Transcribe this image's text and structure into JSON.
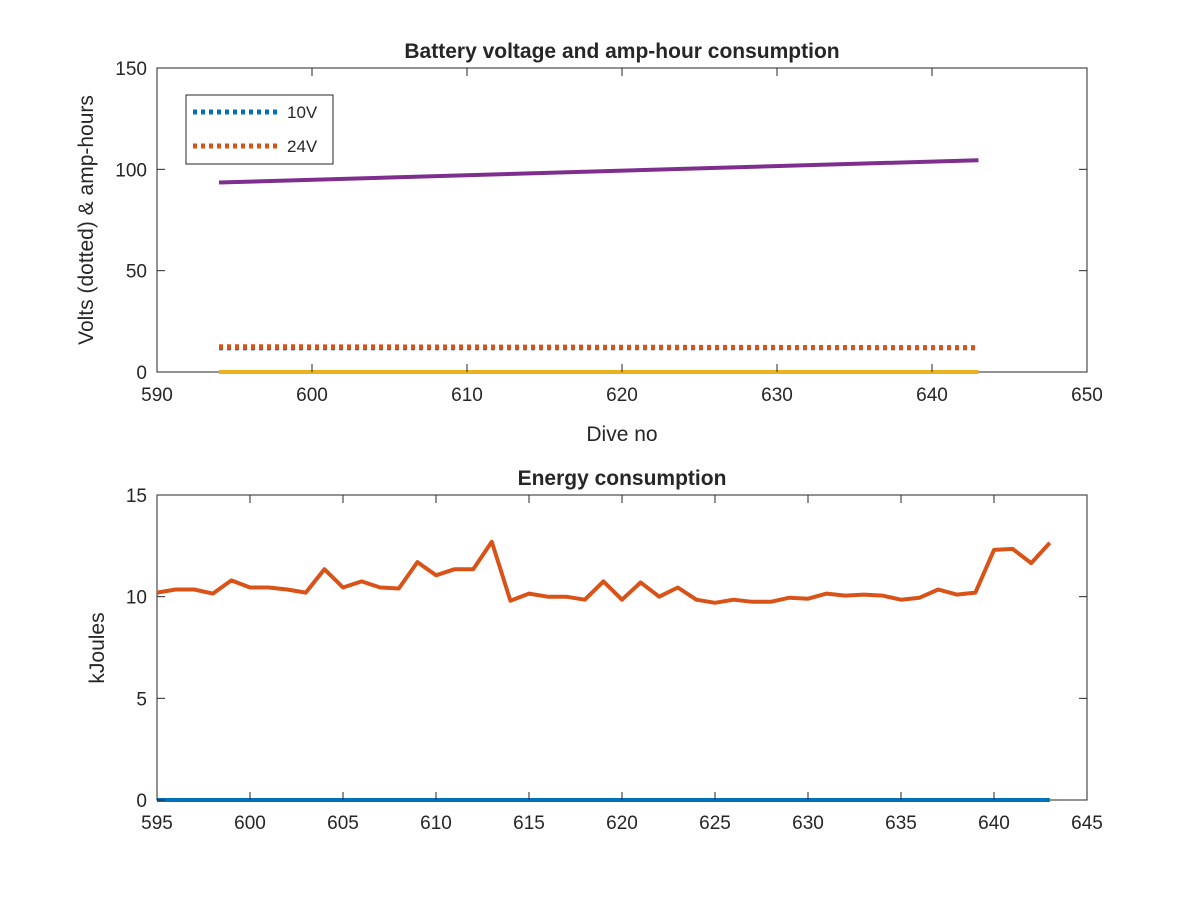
{
  "colors": {
    "blue": "#0072BD",
    "orange": "#D95319",
    "yellow": "#EDB120",
    "purple": "#7E2F8E",
    "axis": "#262626"
  },
  "chart_data": [
    {
      "type": "line",
      "title": "Battery voltage and amp-hour consumption",
      "xlabel": "Dive no",
      "ylabel": "Volts (dotted) & amp-hours",
      "xlim": [
        590,
        650
      ],
      "ylim": [
        0,
        150
      ],
      "xticks": [
        590,
        600,
        610,
        620,
        630,
        640,
        650
      ],
      "yticks": [
        0,
        50,
        100,
        150
      ],
      "grid": false,
      "legend": {
        "placement": "top-left",
        "entries": [
          "10V",
          "24V"
        ]
      },
      "series": [
        {
          "name": "10V",
          "style": "dotted",
          "color": "blue",
          "x": [
            594,
            643
          ],
          "y": [
            12,
            12
          ]
        },
        {
          "name": "24V",
          "style": "dotted",
          "color": "orange",
          "x": [
            594,
            643
          ],
          "y": [
            12.5,
            12
          ]
        },
        {
          "style": "solid",
          "color": "yellow",
          "x": [
            594,
            643
          ],
          "y": [
            0,
            0
          ]
        },
        {
          "style": "solid",
          "color": "purple",
          "x": [
            594,
            643
          ],
          "y": [
            93.5,
            104.5
          ]
        }
      ]
    },
    {
      "type": "line",
      "title": "Energy consumption",
      "xlabel": "",
      "ylabel": "kJoules",
      "xlim": [
        595,
        645
      ],
      "ylim": [
        0,
        15
      ],
      "xticks": [
        595,
        600,
        605,
        610,
        615,
        620,
        625,
        630,
        635,
        640,
        645
      ],
      "yticks": [
        0,
        5,
        10,
        15
      ],
      "grid": false,
      "series": [
        {
          "style": "solid",
          "color": "blue",
          "x": [
            595,
            643
          ],
          "y": [
            0,
            0
          ]
        },
        {
          "style": "solid",
          "color": "orange",
          "x": [
            595,
            596,
            597,
            598,
            599,
            600,
            601,
            602,
            603,
            604,
            605,
            606,
            607,
            608,
            609,
            610,
            611,
            612,
            613,
            614,
            615,
            616,
            617,
            618,
            619,
            620,
            621,
            622,
            623,
            624,
            625,
            626,
            627,
            628,
            629,
            630,
            631,
            632,
            633,
            634,
            635,
            636,
            637,
            638,
            639,
            640,
            641,
            642,
            643
          ],
          "y": [
            10.2,
            10.35,
            10.35,
            10.15,
            10.8,
            10.45,
            10.45,
            10.35,
            10.2,
            11.35,
            10.45,
            10.75,
            10.45,
            10.4,
            11.7,
            11.05,
            11.35,
            11.35,
            12.7,
            9.8,
            10.15,
            10.0,
            10.0,
            9.85,
            10.75,
            9.85,
            10.7,
            10.0,
            10.45,
            9.85,
            9.7,
            9.85,
            9.75,
            9.75,
            9.95,
            9.9,
            10.15,
            10.05,
            10.1,
            10.05,
            9.85,
            9.95,
            10.35,
            10.1,
            10.2,
            12.3,
            12.35,
            11.65,
            12.65
          ]
        }
      ]
    }
  ]
}
